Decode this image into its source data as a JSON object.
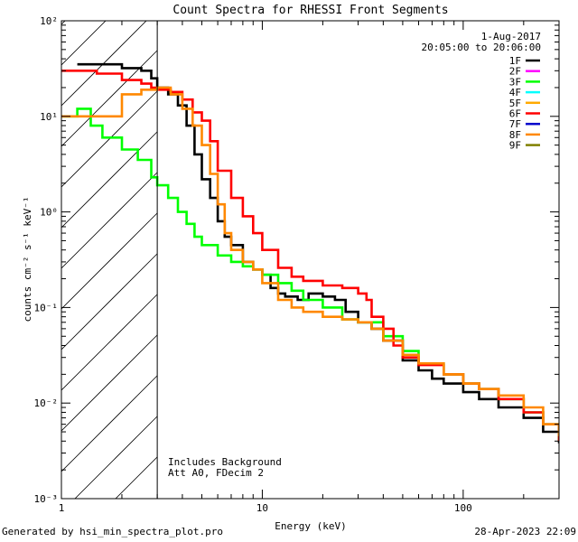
{
  "chart_data": {
    "type": "line",
    "title": "Count Spectra for RHESSI Front Segments",
    "xlabel": "Energy (keV)",
    "ylabel": "counts cm⁻² s⁻¹ keV⁻¹",
    "x_scale": "log",
    "y_scale": "log",
    "xlim": [
      1,
      300
    ],
    "ylim": [
      0.001,
      100
    ],
    "x_major_ticks": [
      1,
      10,
      100
    ],
    "x_tick_labels": [
      "1",
      "10",
      "100"
    ],
    "y_major_ticks": [
      0.001,
      0.01,
      0.1,
      1,
      10,
      100
    ],
    "y_tick_labels": [
      "10⁻³",
      "10⁻²",
      "10⁻¹",
      "10⁰",
      "10¹",
      "10²"
    ],
    "hatched_region_x": [
      1,
      3
    ],
    "date": "1-Aug-2017",
    "time_range": "20:05:00 to 20:06:00",
    "legend": [
      {
        "label": "1F",
        "color": "#000000"
      },
      {
        "label": "2F",
        "color": "#ff00ff"
      },
      {
        "label": "3F",
        "color": "#00ff00"
      },
      {
        "label": "4F",
        "color": "#00ffff"
      },
      {
        "label": "5F",
        "color": "#ffaa00"
      },
      {
        "label": "6F",
        "color": "#ff0000"
      },
      {
        "label": "7F",
        "color": "#0000cc"
      },
      {
        "label": "8F",
        "color": "#ff8800"
      },
      {
        "label": "9F",
        "color": "#808000"
      }
    ],
    "series": [
      {
        "name": "1F",
        "color": "#000000",
        "x": [
          1.2,
          1.5,
          2.0,
          2.5,
          2.8,
          3.0,
          3.4,
          3.8,
          4.2,
          4.6,
          5.0,
          5.5,
          6.0,
          6.5,
          7.0,
          8.0,
          9.0,
          10,
          11,
          12,
          13,
          15,
          17,
          20,
          23,
          26,
          30,
          35,
          40,
          50,
          60,
          70,
          80,
          100,
          120,
          150,
          200,
          250,
          300
        ],
        "y": [
          35,
          35,
          32,
          30,
          25,
          20,
          17,
          13,
          8,
          4,
          2.2,
          1.4,
          0.8,
          0.55,
          0.45,
          0.3,
          0.25,
          0.22,
          0.16,
          0.14,
          0.13,
          0.12,
          0.14,
          0.13,
          0.12,
          0.09,
          0.07,
          0.06,
          0.045,
          0.028,
          0.022,
          0.018,
          0.016,
          0.013,
          0.011,
          0.009,
          0.007,
          0.005,
          0.0038
        ]
      },
      {
        "name": "3F",
        "color": "#00ff00",
        "x": [
          1.0,
          1.2,
          1.4,
          1.6,
          2.0,
          2.4,
          2.8,
          3.0,
          3.4,
          3.8,
          4.2,
          4.6,
          5.0,
          6.0,
          7.0,
          8.0,
          9.0,
          10,
          12,
          14,
          16,
          20,
          25,
          30,
          40,
          50,
          60,
          80,
          100,
          120,
          150,
          200,
          250,
          300
        ],
        "y": [
          10,
          12,
          8,
          6,
          4.5,
          3.5,
          2.3,
          1.9,
          1.4,
          1.0,
          0.75,
          0.55,
          0.45,
          0.35,
          0.3,
          0.27,
          0.25,
          0.22,
          0.18,
          0.15,
          0.12,
          0.1,
          0.075,
          0.07,
          0.05,
          0.035,
          0.026,
          0.02,
          0.016,
          0.014,
          0.011,
          0.008,
          0.006,
          0.004
        ]
      },
      {
        "name": "6F",
        "color": "#ff0000",
        "x": [
          1.0,
          1.2,
          1.5,
          2.0,
          2.5,
          2.8,
          3.0,
          3.5,
          4.0,
          4.5,
          5.0,
          5.5,
          6.0,
          7.0,
          8.0,
          9.0,
          10,
          12,
          14,
          16,
          20,
          25,
          30,
          33,
          35,
          40,
          45,
          50,
          60,
          80,
          100,
          120,
          150,
          200,
          250,
          300
        ],
        "y": [
          30,
          30,
          28,
          24,
          22,
          20,
          19,
          18,
          15,
          11,
          9,
          5.5,
          2.7,
          1.4,
          0.9,
          0.6,
          0.4,
          0.26,
          0.21,
          0.19,
          0.17,
          0.16,
          0.14,
          0.12,
          0.08,
          0.06,
          0.04,
          0.03,
          0.025,
          0.02,
          0.016,
          0.014,
          0.011,
          0.008,
          0.006,
          0.004
        ]
      },
      {
        "name": "8F",
        "color": "#ff8800",
        "x": [
          1.0,
          1.2,
          1.5,
          2.0,
          2.5,
          3.0,
          3.5,
          4.0,
          4.5,
          5.0,
          5.5,
          6.0,
          6.5,
          7.0,
          8.0,
          9.0,
          10,
          12,
          14,
          16,
          20,
          25,
          30,
          35,
          40,
          50,
          60,
          80,
          100,
          120,
          150,
          200,
          250,
          300
        ],
        "y": [
          10,
          10,
          10,
          17,
          19,
          20,
          17,
          12,
          8,
          5,
          2.5,
          1.2,
          0.6,
          0.4,
          0.3,
          0.25,
          0.18,
          0.12,
          0.1,
          0.09,
          0.08,
          0.075,
          0.07,
          0.06,
          0.045,
          0.032,
          0.026,
          0.02,
          0.016,
          0.014,
          0.012,
          0.009,
          0.006,
          0.0045
        ]
      }
    ],
    "annotations": [
      "Includes Background",
      "Att A0, FDecim 2"
    ]
  },
  "footer": {
    "left": "Generated by hsi_min_spectra_plot.pro",
    "right": "28-Apr-2023 22:09"
  }
}
